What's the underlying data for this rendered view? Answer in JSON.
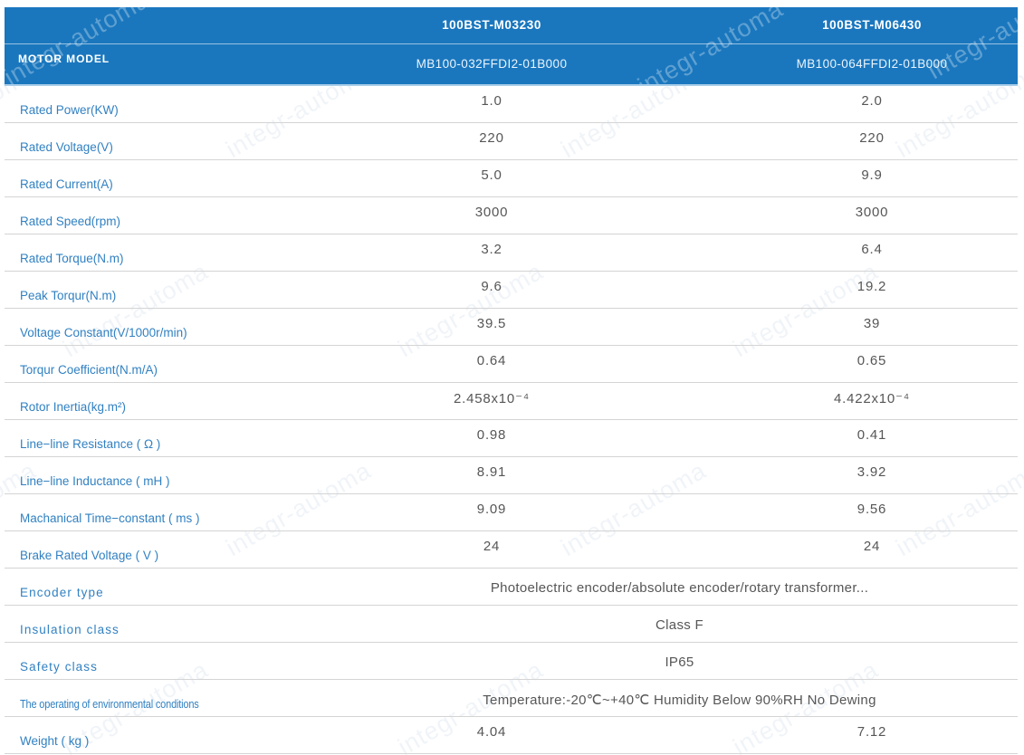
{
  "watermark": {
    "text": "integr-automa"
  },
  "colors": {
    "header_blue": "#1a77be",
    "header_bottom_strip": "#a9cde8",
    "label_blue": "#3181c2",
    "value_gray": "#565656",
    "row_border": "#d4d4d4",
    "header_text": "#ffffff"
  },
  "header": {
    "label": "MOTOR MODEL",
    "columns": [
      {
        "model": "100BST-M03230",
        "part": "MB100-032FFDI2-01B000"
      },
      {
        "model": "100BST-M06430",
        "part": "MB100-064FFDI2-01B000"
      }
    ]
  },
  "table": {
    "rows": [
      {
        "label": "Rated Power(KW)",
        "values": [
          "1.0",
          "2.0"
        ]
      },
      {
        "label": "Rated Voltage(V)",
        "values": [
          "220",
          "220"
        ]
      },
      {
        "label": "Rated Current(A)",
        "values": [
          "5.0",
          "9.9"
        ]
      },
      {
        "label": "Rated Speed(rpm)",
        "values": [
          "3000",
          "3000"
        ]
      },
      {
        "label": "Rated Torque(N.m)",
        "values": [
          "3.2",
          "6.4"
        ]
      },
      {
        "label": "Peak Torqur(N.m)",
        "values": [
          "9.6",
          "19.2"
        ]
      },
      {
        "label": "Voltage Constant(V/1000r/min)",
        "values": [
          "39.5",
          "39"
        ]
      },
      {
        "label": "Torqur Coefficient(N.m/A)",
        "values": [
          "0.64",
          "0.65"
        ]
      },
      {
        "label": "Rotor Inertia(kg.m²)",
        "values": [
          "2.458x10⁻⁴",
          "4.422x10⁻⁴"
        ]
      },
      {
        "label": "Line−line Resistance ( Ω )",
        "values": [
          "0.98",
          "0.41"
        ]
      },
      {
        "label": "Line−line Inductance ( mH )",
        "values": [
          "8.91",
          "3.92"
        ]
      },
      {
        "label": "Machanical Time−constant ( ms )",
        "values": [
          "9.09",
          "9.56"
        ]
      },
      {
        "label": "Brake Rated Voltage ( V )",
        "values": [
          "24",
          "24"
        ]
      },
      {
        "label": "Encoder type",
        "label_style": "spaced",
        "span": "Photoelectric encoder/absolute encoder/rotary transformer..."
      },
      {
        "label": "Insulation class",
        "label_style": "spaced",
        "span": "Class F"
      },
      {
        "label": "Safety class",
        "label_style": "spaced",
        "span": "IP65"
      },
      {
        "label": "The operating of environmental conditions",
        "label_style": "condensed",
        "span": "Temperature:-20℃~+40℃  Humidity Below 90%RH No Dewing"
      },
      {
        "label": "Weight ( kg )",
        "values": [
          "4.04",
          "7.12"
        ]
      }
    ]
  }
}
